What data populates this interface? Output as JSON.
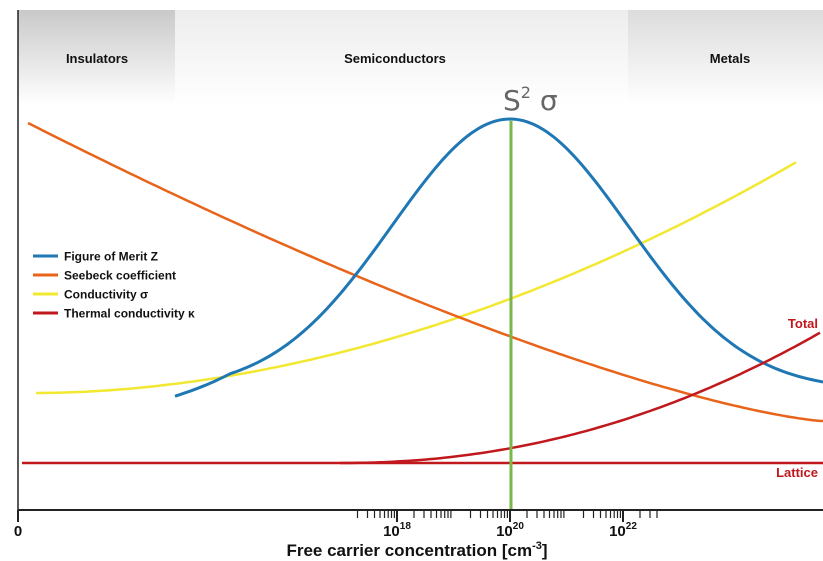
{
  "chart_data": {
    "type": "line",
    "title": "",
    "xlabel": "Free carrier concentration [cm",
    "xlabel_sup": "-3",
    "xlabel_end": "]",
    "ylabel": "",
    "x_scale": "log",
    "x_ticks": [
      {
        "label": "0",
        "value": 0
      },
      {
        "base": "10",
        "exp": "18",
        "value": 1e+18
      },
      {
        "base": "10",
        "exp": "20",
        "value": 1e+20
      },
      {
        "base": "10",
        "exp": "22",
        "value": 1e+22
      }
    ],
    "regions": [
      {
        "label": "Insulators",
        "shade": "#c9c9c9"
      },
      {
        "label": "Semiconductors",
        "shade": "#ededed"
      },
      {
        "label": "Metals",
        "shade": "#dcdcdc"
      }
    ],
    "peak_annotation": {
      "base": "S",
      "sup": "2",
      "tail": " σ",
      "color": "#7ab648"
    },
    "legend_position": "left",
    "series": [
      {
        "name": "Figure of Merit Z",
        "color": "#1f77b4",
        "shape": "peak"
      },
      {
        "name": "Seebeck coefficient",
        "color": "#e8641b",
        "shape": "decreasing"
      },
      {
        "name": "Conductivity σ",
        "color": "#f2e832",
        "shape": "increasing"
      },
      {
        "name": "Thermal conductivity κ",
        "color": "#c0181c",
        "shape": "lattice + electronic"
      }
    ],
    "kappa_labels": {
      "total": "Total",
      "lattice": "Lattice"
    }
  }
}
